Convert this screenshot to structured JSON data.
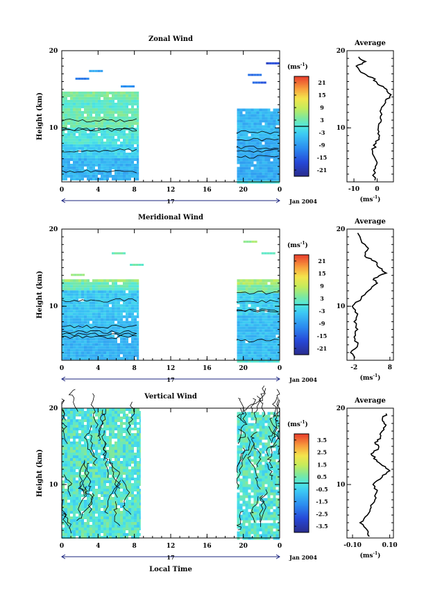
{
  "chart_data": [
    {
      "type": "heatmap",
      "title": "Zonal Wind",
      "ylabel": "Height (km)",
      "xlabel": "",
      "xticks": [
        "0",
        "4",
        "8",
        "12",
        "16",
        "20",
        "0"
      ],
      "yticks": [
        "10",
        "20"
      ],
      "ylim": [
        3,
        20
      ],
      "xlim": [
        0,
        24
      ],
      "date_label": "Jan 2004",
      "day_label": "17",
      "data_segments": [
        {
          "x_range": [
            0,
            8.5
          ],
          "h_range": [
            3.2,
            14.7
          ],
          "bands": [
            {
              "h": [
                3.2,
                6.0
              ],
              "v": -6
            },
            {
              "h": [
                6.0,
                8.0
              ],
              "v": -3
            },
            {
              "h": [
                8.0,
                10.2
              ],
              "v": 0
            },
            {
              "h": [
                10.2,
                12.5
              ],
              "v": 3
            },
            {
              "h": [
                12.5,
                13.5
              ],
              "v": 1
            },
            {
              "h": [
                13.5,
                14.7
              ],
              "v": 4
            }
          ]
        },
        {
          "x_range": [
            19.3,
            24
          ],
          "h_range": [
            3.0,
            12.5
          ],
          "bands": [
            {
              "h": [
                3.0,
                8.5
              ],
              "v": -7
            },
            {
              "h": [
                8.5,
                10.5
              ],
              "v": -5
            },
            {
              "h": [
                10.5,
                12.5
              ],
              "v": -6
            }
          ]
        }
      ],
      "scattered_points": [
        {
          "x": 1.5,
          "h": 16.5,
          "v": -12
        },
        {
          "x": 3.0,
          "h": 17.5,
          "v": -8
        },
        {
          "x": 6.5,
          "h": 15.5,
          "v": -10
        },
        {
          "x": 20.5,
          "h": 17.0,
          "v": -14
        },
        {
          "x": 22.5,
          "h": 18.5,
          "v": -18
        },
        {
          "x": 21.0,
          "h": 16.0,
          "v": -15
        }
      ],
      "colorbar": {
        "units": "(ms",
        "units_exp": "-1",
        "units_close": ")",
        "labels": [
          "21",
          "15",
          "9",
          "3",
          "-3",
          "-9",
          "-15",
          "-21"
        ],
        "min": -24,
        "max": 24
      },
      "average_panel": {
        "title": "Average",
        "xlabel": "(ms",
        "xlabel_exp": "-1",
        "xlabel_close": ")",
        "xticks": [
          "-10",
          "0"
        ],
        "xlim": [
          -13,
          7
        ],
        "yticks": [
          "10",
          "20"
        ],
        "h": [
          3.2,
          4.5,
          5.5,
          7.0,
          8.0,
          9.0,
          10.0,
          11.0,
          12.0,
          12.7,
          13.5,
          14.3,
          15.2,
          15.8,
          16.5,
          17.2,
          18.0,
          18.6,
          19.2
        ],
        "v": [
          -1,
          -1.5,
          0,
          -2,
          -0.5,
          1,
          0.5,
          1.8,
          1.5,
          2.0,
          3.5,
          6,
          3,
          0,
          -2,
          -7,
          -9,
          -5,
          -8
        ]
      }
    },
    {
      "type": "heatmap",
      "title": "Meridional Wind",
      "ylabel": "Height (km)",
      "xlabel": "",
      "xticks": [
        "0",
        "4",
        "8",
        "12",
        "16",
        "20",
        "0"
      ],
      "yticks": [
        "10",
        "20"
      ],
      "ylim": [
        3,
        20
      ],
      "xlim": [
        0,
        24
      ],
      "date_label": "Jan 2004",
      "day_label": "17",
      "data_segments": [
        {
          "x_range": [
            0,
            8.5
          ],
          "h_range": [
            3.1,
            13.5
          ],
          "bands": [
            {
              "h": [
                3.1,
                6.0
              ],
              "v": -6
            },
            {
              "h": [
                6.0,
                9.0
              ],
              "v": -5
            },
            {
              "h": [
                9.0,
                12.0
              ],
              "v": -4
            },
            {
              "h": [
                12.0,
                13.0
              ],
              "v": 2
            },
            {
              "h": [
                13.0,
                13.5
              ],
              "v": 6
            }
          ]
        },
        {
          "x_range": [
            19.3,
            24
          ],
          "h_range": [
            3.0,
            13.5
          ],
          "bands": [
            {
              "h": [
                3.0,
                9.0
              ],
              "v": -5
            },
            {
              "h": [
                9.0,
                11.8
              ],
              "v": -3
            },
            {
              "h": [
                11.8,
                12.8
              ],
              "v": 4
            },
            {
              "h": [
                12.8,
                13.5
              ],
              "v": 7
            }
          ]
        }
      ],
      "scattered_points": [
        {
          "x": 5.5,
          "h": 17.0,
          "v": 3
        },
        {
          "x": 7.5,
          "h": 15.5,
          "v": 2
        },
        {
          "x": 1.0,
          "h": 14.2,
          "v": 5
        },
        {
          "x": 20.0,
          "h": 18.5,
          "v": 6
        },
        {
          "x": 22.0,
          "h": 17.0,
          "v": 2
        }
      ],
      "colorbar": {
        "units": "(ms",
        "units_exp": "-1",
        "units_close": ")",
        "labels": [
          "21",
          "15",
          "9",
          "3",
          "-3",
          "-9",
          "-15",
          "-21"
        ],
        "min": -24,
        "max": 24
      },
      "average_panel": {
        "title": "Average",
        "xlabel": "(ms",
        "xlabel_exp": "-1",
        "xlabel_close": ")",
        "xticks": [
          "-2",
          "8"
        ],
        "xlim": [
          -4,
          9
        ],
        "yticks": [
          "10",
          "20"
        ],
        "h": [
          3.2,
          4.0,
          5.0,
          6.0,
          7.0,
          8.0,
          9.0,
          10.0,
          11.0,
          12.0,
          13.0,
          13.6,
          14.3,
          15.0,
          15.8,
          16.5,
          17.5,
          18.5,
          19.5
        ],
        "v": [
          -2,
          -3,
          -1,
          -2,
          -1,
          -2,
          -1,
          -2.5,
          0,
          2,
          4.5,
          3.5,
          7,
          5,
          4,
          1,
          2,
          0,
          -1
        ]
      }
    },
    {
      "type": "heatmap",
      "title": "Vertical Wind",
      "ylabel": "Height (km)",
      "xlabel": "Local Time",
      "xticks": [
        "0",
        "4",
        "8",
        "12",
        "16",
        "20",
        "0"
      ],
      "yticks": [
        "10",
        "20"
      ],
      "ylim": [
        3,
        20
      ],
      "xlim": [
        0,
        24
      ],
      "date_label": "Jan 2004",
      "day_label": "17",
      "data_segments": [
        {
          "x_range": [
            0,
            8.7
          ],
          "h_range": [
            3.0,
            20.0
          ],
          "bands": [
            {
              "h": [
                3.0,
                20.0
              ],
              "v": 0.1
            }
          ]
        },
        {
          "x_range": [
            19.3,
            24
          ],
          "h_range": [
            3.0,
            19.5
          ],
          "bands": [
            {
              "h": [
                3.0,
                19.5
              ],
              "v": 0.1
            }
          ]
        }
      ],
      "scattered_points": [],
      "colorbar": {
        "units": "(ms",
        "units_exp": "-1",
        "units_close": ")",
        "labels": [
          "3.5",
          "2.5",
          "1.5",
          "0.5",
          "-0.5",
          "-1.5",
          "-2.5",
          "-3.5"
        ],
        "min": -4,
        "max": 4
      },
      "average_panel": {
        "title": "Average",
        "xlabel": "(ms",
        "xlabel_exp": "-1",
        "xlabel_close": ")",
        "xticks": [
          "-0.10",
          "0.10"
        ],
        "xlim": [
          -0.13,
          0.12
        ],
        "yticks": [
          "10",
          "20"
        ],
        "h": [
          3.2,
          4.0,
          5.0,
          6.0,
          7.0,
          8.0,
          9.0,
          10.0,
          11.0,
          11.8,
          12.5,
          13.2,
          14.0,
          14.8,
          15.5,
          16.2,
          17.0,
          17.8,
          18.5,
          19.3
        ],
        "v": [
          -0.01,
          -0.02,
          -0.06,
          -0.02,
          0.0,
          0.02,
          0.03,
          0.01,
          0.06,
          0.1,
          0.06,
          0.03,
          0.0,
          0.04,
          0.02,
          0.05,
          0.06,
          0.08,
          0.06,
          0.08
        ]
      }
    }
  ]
}
